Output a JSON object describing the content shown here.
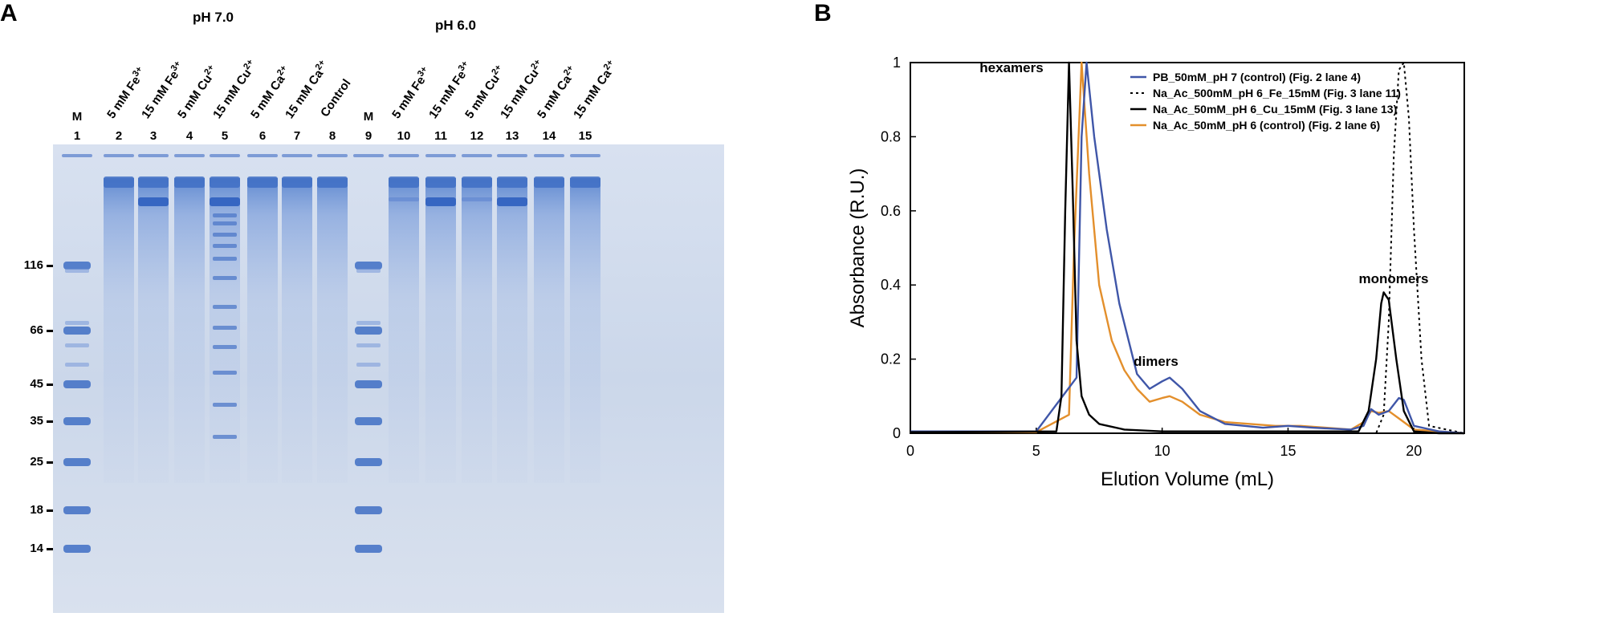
{
  "panel_a": {
    "letter": "A",
    "group_ph7": "pH 7.0",
    "group_ph6": "pH 6.0",
    "lane_labels": [
      {
        "lane": "1",
        "text": "M",
        "kind": "marker"
      },
      {
        "lane": "2",
        "text": "5 mM Fe",
        "ion": "3+"
      },
      {
        "lane": "3",
        "text": "15 mM Fe",
        "ion": "3+"
      },
      {
        "lane": "4",
        "text": "5 mM Cu",
        "ion": "2+"
      },
      {
        "lane": "5",
        "text": "15 mM Cu",
        "ion": "2+"
      },
      {
        "lane": "6",
        "text": "5 mM Ca",
        "ion": "2+"
      },
      {
        "lane": "7",
        "text": "15 mM Ca",
        "ion": "2+"
      },
      {
        "lane": "8",
        "text": "Control",
        "ion": ""
      },
      {
        "lane": "9",
        "text": "M",
        "kind": "marker"
      },
      {
        "lane": "10",
        "text": "5 mM Fe",
        "ion": "3+"
      },
      {
        "lane": "11",
        "text": "15 mM Fe",
        "ion": "3+"
      },
      {
        "lane": "12",
        "text": "5 mM Cu",
        "ion": "2+"
      },
      {
        "lane": "13",
        "text": "15 mM Cu",
        "ion": "2+"
      },
      {
        "lane": "14",
        "text": "5 mM Ca",
        "ion": "2+"
      },
      {
        "lane": "15",
        "text": "15 mM Ca",
        "ion": "2+"
      }
    ],
    "mw_markers": [
      "116",
      "66",
      "45",
      "35",
      "25",
      "18",
      "14"
    ],
    "gel_color": "#c9d6eb",
    "band_color": "#3f6fc4"
  },
  "panel_b": {
    "letter": "B",
    "annotations": [
      "hexamers",
      "dimers",
      "monomers"
    ]
  },
  "chart_data": {
    "type": "line",
    "xlabel": "Elution Volume (mL)",
    "ylabel": "Absorbance (R.U.)",
    "xlim": [
      0,
      22
    ],
    "ylim": [
      0,
      1.0
    ],
    "x_ticks": [
      "0",
      "5",
      "10",
      "15",
      "20"
    ],
    "y_ticks": [
      "0",
      "0.2",
      "0.4",
      "0.6",
      "0.8",
      "1"
    ],
    "legend_position": "top-right",
    "series": [
      {
        "name": "PB_50mM_pH 7 (control) (Fig. 2 lane 4)",
        "color": "#3f56a8",
        "dash": "solid",
        "x": [
          0,
          5,
          6.6,
          6.8,
          7.0,
          7.3,
          7.8,
          8.3,
          9.0,
          9.5,
          10.0,
          10.3,
          10.8,
          11.5,
          12.5,
          14,
          15,
          16,
          17.5,
          18.0,
          18.3,
          18.6,
          19.0,
          19.4,
          19.6,
          20.0,
          21,
          22
        ],
        "y": [
          0.005,
          0.005,
          0.15,
          0.8,
          1.0,
          0.8,
          0.55,
          0.35,
          0.16,
          0.12,
          0.14,
          0.15,
          0.12,
          0.06,
          0.025,
          0.015,
          0.02,
          0.015,
          0.01,
          0.02,
          0.065,
          0.05,
          0.06,
          0.095,
          0.09,
          0.02,
          0.005,
          0.0
        ]
      },
      {
        "name": "Na_Ac_500mM_pH 6_Fe_15mM (Fig. 3 lane 11)",
        "color": "#000000",
        "dash": "dotted",
        "x": [
          0,
          18.5,
          18.8,
          19.0,
          19.2,
          19.4,
          19.6,
          19.8,
          20.0,
          20.3,
          20.6,
          22
        ],
        "y": [
          0.0,
          0.0,
          0.05,
          0.3,
          0.75,
          0.98,
          1.0,
          0.85,
          0.55,
          0.2,
          0.02,
          0.0
        ]
      },
      {
        "name": "Na_Ac_50mM_pH 6_Cu_15mM (Fig. 3 lane 13)",
        "color": "#000000",
        "dash": "solid",
        "x": [
          0,
          5.8,
          6.0,
          6.15,
          6.3,
          6.45,
          6.6,
          6.8,
          7.1,
          7.5,
          8.5,
          10,
          17.8,
          18.2,
          18.5,
          18.7,
          18.8,
          19.0,
          19.3,
          19.6,
          20.0,
          21,
          22
        ],
        "y": [
          0.003,
          0.005,
          0.1,
          0.6,
          1.0,
          0.65,
          0.25,
          0.1,
          0.05,
          0.025,
          0.01,
          0.005,
          0.005,
          0.06,
          0.2,
          0.35,
          0.38,
          0.36,
          0.2,
          0.06,
          0.005,
          0.0,
          0.0
        ]
      },
      {
        "name": "Na_Ac_50mM_pH 6 (control) (Fig. 2 lane 6)",
        "color": "#e38f2c",
        "dash": "solid",
        "x": [
          0,
          5,
          6.3,
          6.5,
          6.8,
          7.1,
          7.5,
          8.0,
          8.5,
          9.0,
          9.5,
          10.0,
          10.3,
          10.8,
          11.5,
          12.5,
          13.5,
          14.5,
          15.5,
          16.5,
          17.5,
          18.0,
          18.3,
          18.6,
          19.0,
          19.4,
          20.0,
          21,
          22
        ],
        "y": [
          0.005,
          0.003,
          0.05,
          0.5,
          1.0,
          0.7,
          0.4,
          0.25,
          0.17,
          0.12,
          0.085,
          0.095,
          0.1,
          0.085,
          0.05,
          0.03,
          0.025,
          0.02,
          0.02,
          0.015,
          0.01,
          0.03,
          0.06,
          0.055,
          0.06,
          0.04,
          0.01,
          0.005,
          0.0
        ]
      }
    ]
  }
}
